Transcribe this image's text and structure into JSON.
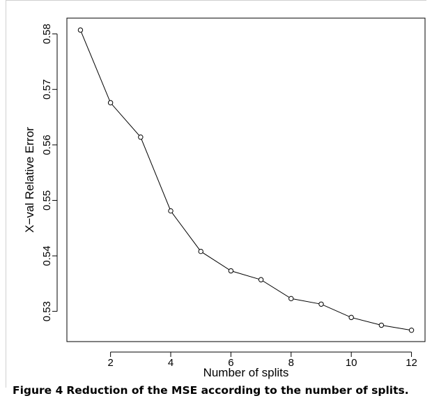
{
  "chart_data": {
    "type": "line",
    "title": "",
    "xlabel": "Number of splits",
    "ylabel": "X−val Relative Error",
    "x": [
      1,
      2,
      3,
      4,
      5,
      6,
      7,
      8,
      9,
      10,
      11,
      12
    ],
    "y": [
      0.5807,
      0.5676,
      0.5614,
      0.5481,
      0.5408,
      0.5373,
      0.5357,
      0.5323,
      0.5313,
      0.5289,
      0.5275,
      0.5266
    ],
    "xticks": [
      2,
      4,
      6,
      8,
      10,
      12
    ],
    "yticks": [
      0.53,
      0.54,
      0.55,
      0.56,
      0.57,
      0.58
    ],
    "xtick_labels": [
      "2",
      "4",
      "6",
      "8",
      "10",
      "12"
    ],
    "ytick_labels": [
      "0.53",
      "0.54",
      "0.55",
      "0.56",
      "0.57",
      "0.58"
    ],
    "xlim": [
      0.55,
      12.45
    ],
    "ylim": [
      0.52455,
      0.58285
    ],
    "grid": false,
    "marker": "open-circle",
    "line_color": "#000000"
  },
  "caption": {
    "label": "Figure 4",
    "text": "Reduction of the MSE according to the number of splits."
  }
}
